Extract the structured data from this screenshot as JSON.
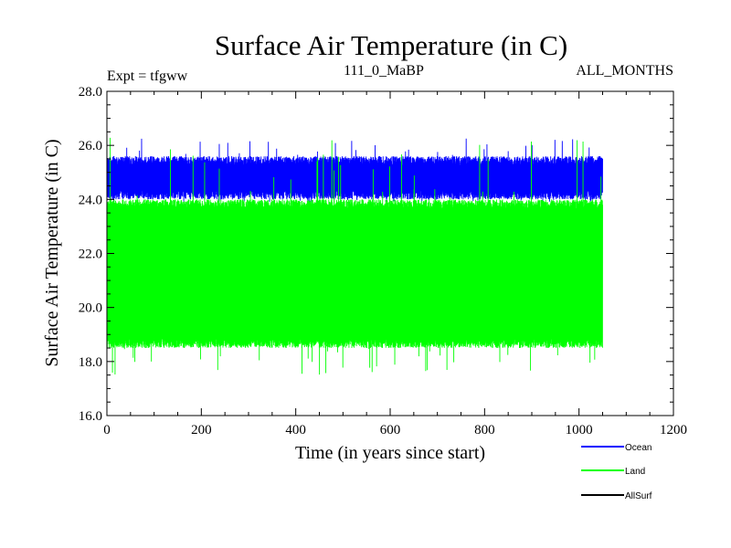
{
  "chart_data": {
    "type": "line",
    "title": "Surface Air Temperature (in C)",
    "subtitle_left": "Expt = tfgww",
    "subtitle_center": "111_0_MaBP",
    "subtitle_right": "ALL_MONTHS",
    "xlabel": "Time (in years since start)",
    "ylabel": "Surface Air Temperature (in C)",
    "xlim": [
      0,
      1200
    ],
    "ylim": [
      16.0,
      28.0
    ],
    "x_ticks": [
      0,
      200,
      400,
      600,
      800,
      1000,
      1200
    ],
    "x_tick_labels": [
      "0",
      "200",
      "400",
      "600",
      "800",
      "1000",
      "1200"
    ],
    "y_ticks": [
      16,
      18,
      20,
      22,
      24,
      26,
      28
    ],
    "y_tick_labels": [
      "16.0",
      "18.0",
      "20.0",
      "22.0",
      "24.0",
      "26.0",
      "28.0"
    ],
    "x_range_data": [
      0,
      1050
    ],
    "series": [
      {
        "name": "Ocean",
        "color": "#0000ff",
        "band_low": 24.0,
        "band_high": 25.6,
        "spike_low": 23.9,
        "spike_high": 26.3
      },
      {
        "name": "Land",
        "color": "#00ff00",
        "band_low": 18.5,
        "band_high": 24.0,
        "spike_low": 17.5,
        "spike_high": 26.3
      },
      {
        "name": "AllSurf",
        "color": "#000000"
      }
    ],
    "legend_position": "bottom-right"
  }
}
